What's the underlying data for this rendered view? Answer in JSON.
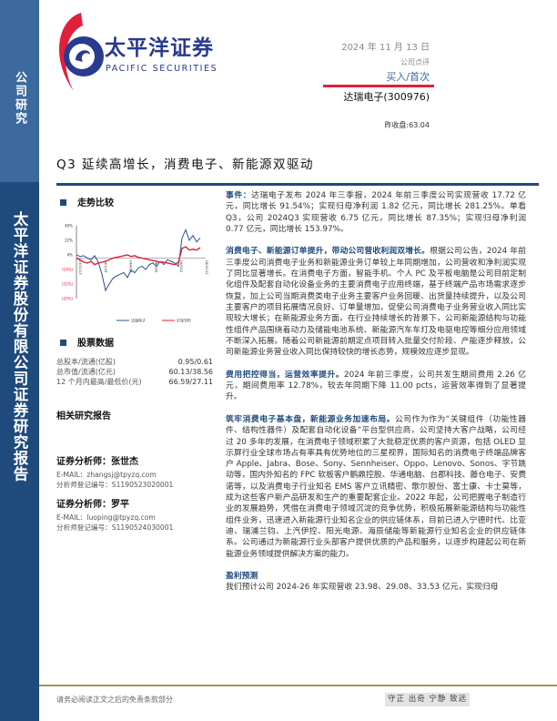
{
  "sidebar": {
    "top_label": "公司研究",
    "bottom_label": "太平洋证券股份有限公司证券研究报告"
  },
  "header": {
    "logo_cn": "太平洋证券",
    "logo_en": "PACIFIC SECURITIES",
    "date": "2024 年 11 月 13 日",
    "report_type": "公司点评",
    "rating": "买入/首次",
    "stock": "达瑞电子(300976)",
    "close": "昨收盘:63.04"
  },
  "title": "Q3 延续高增长，消费电子、新能源双驱动",
  "colors": {
    "accent": "#1f4a7c",
    "red": "#e0203a",
    "sidebar_top": "#3d6a9e"
  },
  "chart_data": {
    "type": "line",
    "title": "走势比较",
    "yticks": [
      "40%",
      "22%",
      "4%",
      "(14%)",
      "(32%)",
      "(50%)"
    ],
    "ylim": [
      -50,
      40
    ],
    "xticks": [
      "23/11/13",
      "24/1/28",
      "24/4/13",
      "24/6/28",
      "24/9/12",
      "24/11/12"
    ],
    "series": [
      {
        "name": "达瑞电子",
        "color": "#2a4f8f",
        "values": [
          4,
          2,
          3,
          0,
          -2,
          3,
          -5,
          -20,
          -40,
          -32,
          -25,
          -22,
          -20,
          -18,
          -24,
          -15,
          -18,
          -12,
          -10,
          -14,
          -8,
          -6,
          -10,
          -4,
          -8,
          -2,
          -4,
          -6,
          -10,
          25,
          35,
          22,
          28,
          20,
          25
        ]
      },
      {
        "name": "沪深300",
        "color": "#e0203a",
        "values": [
          0,
          -2,
          -5,
          -6,
          -4,
          -8,
          -6,
          -5,
          -4,
          -2,
          0,
          1,
          2,
          3,
          4,
          2,
          3,
          1,
          0,
          -1,
          -2,
          -3,
          -4,
          -5,
          -5,
          -6,
          -7,
          -8,
          -5,
          12,
          14,
          10,
          11,
          10,
          13
        ]
      }
    ]
  },
  "stock_data": {
    "title": "股票数据",
    "rows": [
      {
        "label": "总股本/流通(亿股)",
        "value": "0.95/0.61"
      },
      {
        "label": "总市值/流通(亿元)",
        "value": "60.13/38.56"
      },
      {
        "label": "12 个月内最高/最低价(元)",
        "value": "66.59/27.11"
      }
    ]
  },
  "related_title": "相关研究报告",
  "analysts": [
    {
      "name": "证券分析师：张世杰",
      "email": "E-MAIL：zhangsj@tpyzq.com",
      "reg": "分析师登记编号：S1190523020001"
    },
    {
      "name": "证券分析师：罗平",
      "email": "E-MAIL：luoping@tpyzq.com",
      "reg": "分析师登记编号：S1190524030001"
    }
  ],
  "body": {
    "p1_lead": "事件：",
    "p1": "达瑞电子发布 2024 年三季报，2024 年前三季度公司实现营收 17.72 亿元，同比增长 91.54%；实现归母净利润 1.82 亿元，同比增长 281.25%。单看 Q3，公司 2024Q3 实现营收 6.75 亿元，同比增长 87.35%；实现归母净利润 0.77 亿元，同比增长 153.97%。",
    "p2_lead": "消费电子、新能源订单提升，带动公司营收利润双增长。",
    "p2": "根据公司公告，2024 年前三季度公司消费电子业务和新能源业务订单较上年同期增加，公司营收和净利润实现了同比显著增长。在消费电子方面，智能手机、个人 PC 及平板电脑是公司目前定制化组件及配套自动化设备业务的主要消费电子应用终端，基于终端产品市场需求逐步恢复，加上公司当期消费类电子业务主要客户业务回暖、出货量持续提升，以及公司主要客户的项目拓展情况良好、订单量增加，促使公司消费电子业务营业收入同比实现较大增长；在新能源业务方面，在行业持续增长的背景下，公司新能源结构与功能性组件产品围绕着动力及储能电池系统、新能源汽车车灯及电驱电控等细分应用领域不断深入拓展。随着公司新能源前期定点项目转入批量交付阶段、产能逐步释放，公司新能源业务营业收入同比保持较快的增长态势，规模效应逐步显现。",
    "p3_lead": "费用把控得当，运营效率提升。",
    "p3": "2024 年前三季度，公司共发生期间费用 2.26 亿元，期间费用率 12.78%，较去年同期下降 11.00 pcts，运营效率得到了显著提升。",
    "p4_lead": "筑牢消费电子基本盘，新能源业务加速布局。",
    "p4": "公司作为作为“关键组件（功能性器件、结构性器件）及配套自动化设备”平台型供应商，公司坚持大客户战略，公司经过 20 多年的发展，在消费电子领域积累了大批稳定优质的客户资源，包括 OLED 显示屏行业全球市场占有率具有优势地位的三星视界，国际知名的消费电子终端品牌客户 Apple、Jabra、Bose、Sony、Sennheiser、Oppo、Lenovo、Sonos、字节跳动等，国内外知名的 FPC 软板客户鹏鼎控股、华通电脑、台郡科技、藤仓电子、安费诺等，以及消费电子行业知名 EMS 客户立讯精密、歌尔股份、富士康、卡士莫等，成为这些客户新产品研发和生产的重要配套企业。2022 年起，公司把握电子制造行业的发展趋势，凭借在消费电子领域沉淀的竞争优势，积极拓展新能源结构与功能性组件业务，迅速进入新能源行业知名企业的供应链体系，目前已进入宁德时代、比亚迪、瑞浦兰钧、上汽伊控、阳光电源、海辰储能等新能源行业知名企业的供应链体系。公司通过为新能源行业头部客户提供优质的产品和服务，以逐步构建起公司在新能源业务领域提供解决方案的能力。",
    "forecast_title": "盈利预测",
    "forecast": "我们预计公司 2024-26 年实现营收 23.98、29.08、33.53 亿元，实现归母"
  },
  "footer": {
    "disclaimer": "请务必阅读正文之后的免责条款部分",
    "motto": "守正 出奇 宁静 致远"
  }
}
